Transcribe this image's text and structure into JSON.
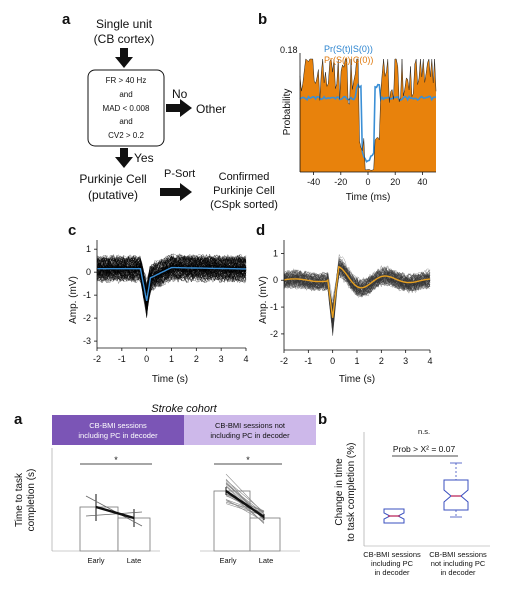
{
  "flow": {
    "panel_label": "a",
    "single_unit": "Single unit",
    "cb_cortex": "(CB cortex)",
    "criteria": [
      "FR > 40 Hz",
      "and",
      "MAD < 0.008",
      "and",
      "CV2 > 0.2"
    ],
    "no_label": "No",
    "other_label": "Other",
    "yes_label": "Yes",
    "purkinje": "Purkinje Cell",
    "putative": "(putative)",
    "psort": "P-Sort",
    "confirmed": [
      "Confirmed",
      "Purkinje Cell",
      "(CSpk sorted)"
    ]
  },
  "panel_b_top": {
    "panel_label": "b",
    "ylabel": "Probability",
    "xlabel": "Time (ms)",
    "ymax_label": "0.18",
    "legend": [
      "Pr(S(t)|S(0))",
      "Pr(S(t)|C(0))"
    ],
    "colors": {
      "ss": "#3a8fd6",
      "cs": "#e8820c"
    }
  },
  "panel_c": {
    "panel_label": "c",
    "ylabel": "Amp. (mV)",
    "xlabel": "Time (s)",
    "yticks": [
      "1",
      "0",
      "-1",
      "-2",
      "-3"
    ],
    "xticks": [
      "-2",
      "-1",
      "0",
      "1",
      "2",
      "3",
      "4"
    ],
    "mean_color": "#3a8fd6"
  },
  "panel_d": {
    "panel_label": "d",
    "ylabel": "Amp. (mV)",
    "xlabel": "Time (s)",
    "yticks": [
      "1",
      "0",
      "-1",
      "-2"
    ],
    "xticks": [
      "-2",
      "-1",
      "0",
      "1",
      "2",
      "3",
      "4"
    ],
    "mean_color": "#e8a020"
  },
  "stroke_cohort": {
    "panel_label": "a",
    "title": "Stroke cohort",
    "header_left": [
      "CB-BMI sessions",
      "including PC in decoder"
    ],
    "header_right": [
      "CB-BMI sessions not",
      "including PC in decoder"
    ],
    "header_left_color": "#7b55b6",
    "header_right_color": "#cdb8ea",
    "ylabel": [
      "Time to task",
      "completion (s)"
    ],
    "sig_left": "*",
    "sig_right": "*",
    "xticks_left": [
      "Early",
      "Late"
    ],
    "xticks_right": [
      "Early",
      "Late"
    ]
  },
  "change_panel": {
    "panel_label": "b",
    "ylabel": [
      "Change in time",
      "to task completion (%)"
    ],
    "ns_label": "n.s.",
    "stat_label": "Prob > X² = 0.07",
    "xticks": [
      [
        "CB-BMI sessions",
        "including PC",
        "in decoder"
      ],
      [
        "CB-BMI sessions",
        "not including PC",
        "in decoder"
      ]
    ],
    "colors": {
      "box1": "#c03a6a",
      "box2": "#3a4fbf"
    }
  }
}
